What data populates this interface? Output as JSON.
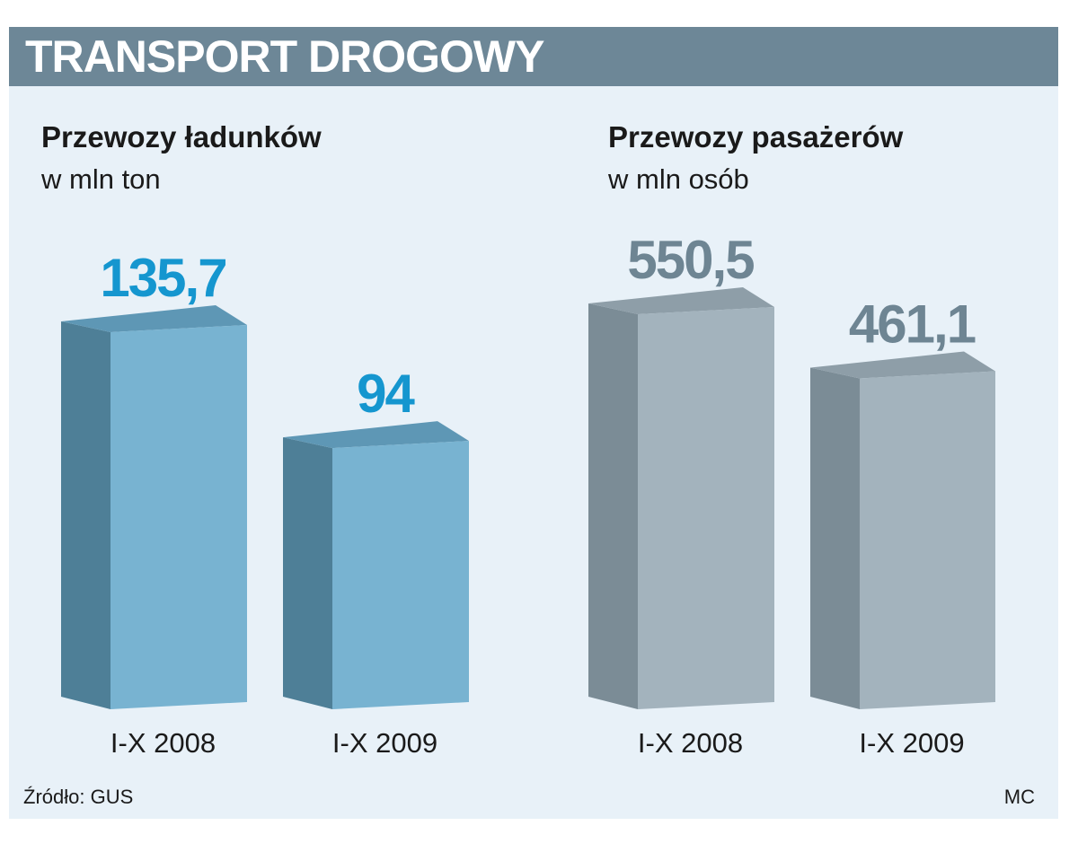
{
  "header": {
    "title": "TRANSPORT DROGOWY"
  },
  "colors": {
    "cargo_front": "#78b3d1",
    "cargo_side": "#4e7f97",
    "cargo_top": "#5e97b5",
    "cargo_label": "#1596cf",
    "pass_front": "#a3b3bd",
    "pass_side": "#7b8c96",
    "pass_top": "#8e9ea8",
    "pass_label": "#6e8593"
  },
  "chart_data": [
    {
      "type": "bar",
      "title": "Przewozy ładunków",
      "unit": "w mln ton",
      "categories": [
        "I-X 2008",
        "I-X 2009"
      ],
      "values": [
        135.7,
        94
      ],
      "value_labels": [
        "135,7",
        "94"
      ]
    },
    {
      "type": "bar",
      "title": "Przewozy pasażerów",
      "unit": "w mln osób",
      "categories": [
        "I-X 2008",
        "I-X 2009"
      ],
      "values": [
        550.5,
        461.1
      ],
      "value_labels": [
        "550,5",
        "461,1"
      ]
    }
  ],
  "footer": {
    "source": "Źródło: GUS",
    "credit": "MC"
  }
}
